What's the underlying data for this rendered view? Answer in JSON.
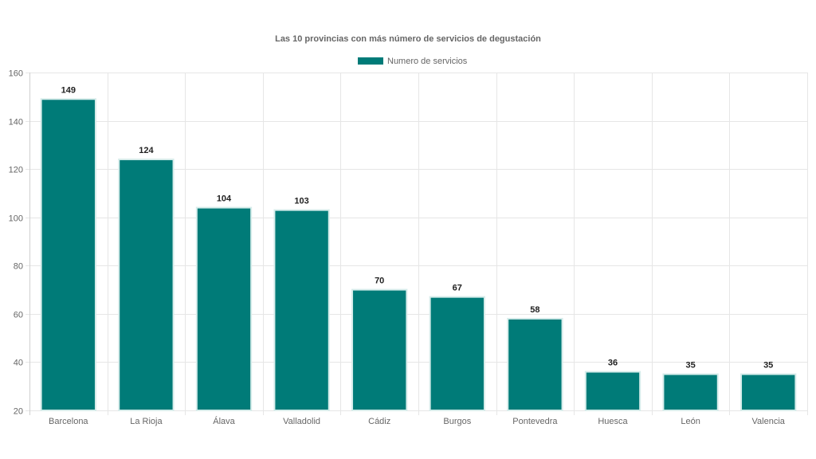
{
  "colors": {
    "bar_fill": "#007b78",
    "bar_border": "#d6ecea",
    "grid": "#e6e6e6",
    "text": "#666666",
    "data_label": "#222222"
  },
  "chart_data": {
    "type": "bar",
    "title": "Las 10 provincias con más número de servicios de degustación",
    "categories": [
      "Barcelona",
      "La Rioja",
      "Álava",
      "Valladolid",
      "Cádiz",
      "Burgos",
      "Pontevedra",
      "Huesca",
      "León",
      "Valencia"
    ],
    "series": [
      {
        "name": "Numero de servicios",
        "values": [
          149,
          124,
          104,
          103,
          70,
          67,
          58,
          36,
          35,
          35
        ]
      }
    ],
    "data_labels": [
      "149",
      "124",
      "104",
      "103",
      "70",
      "67",
      "58",
      "36",
      "35",
      "35"
    ],
    "y_ticks": [
      "20",
      "40",
      "60",
      "80",
      "100",
      "120",
      "140",
      "160"
    ],
    "ylim": [
      20,
      160
    ],
    "grid": true,
    "legend_position": "top"
  }
}
